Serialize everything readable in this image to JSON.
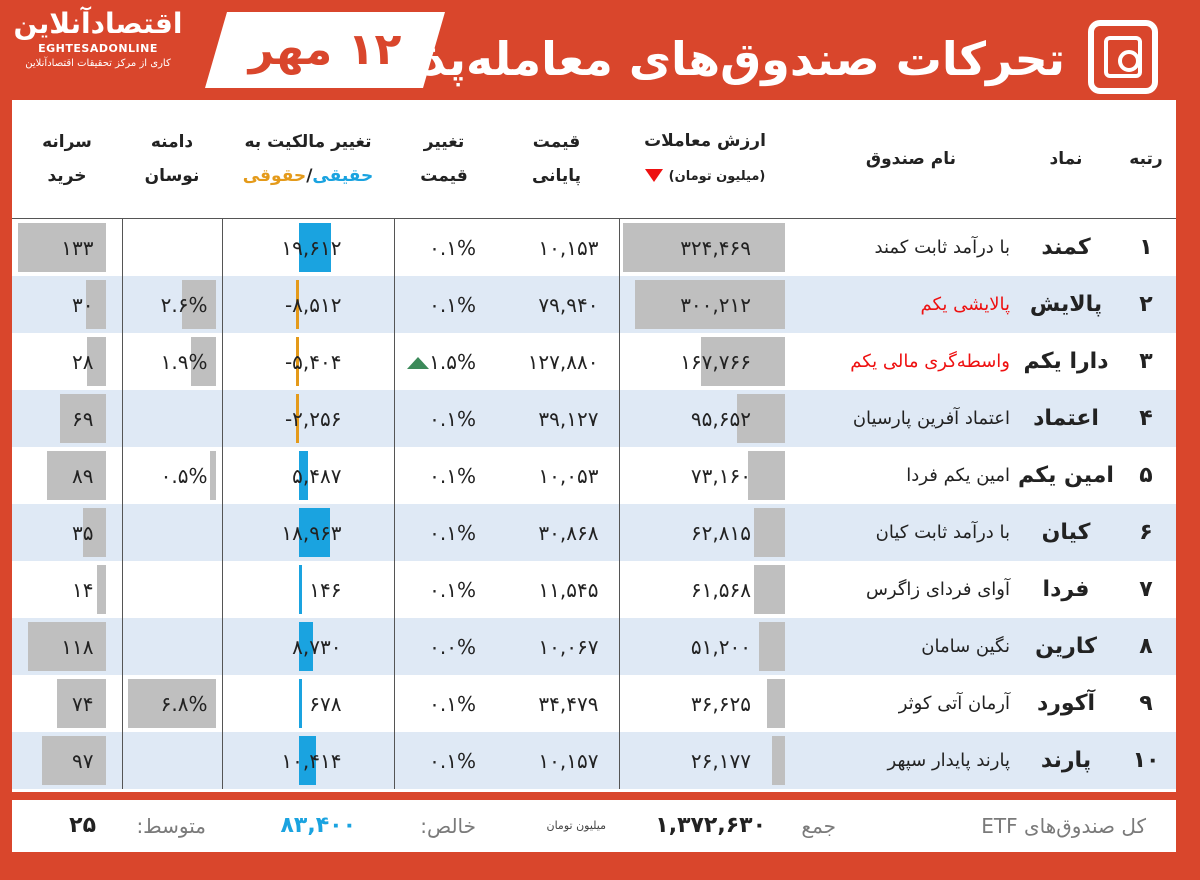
{
  "header": {
    "title": "تحرکات صندوق‌های معامله‌پذیر",
    "date": "۱۲ مهر",
    "logo_main": "اقتصادآنلاین",
    "logo_latin": "EGHTESADONLINE",
    "logo_sub": "کاری از مرکز تحقیقات اقتصادآنلاین"
  },
  "columns": {
    "rank": "رتبه",
    "symbol": "نماد",
    "name": "نام صندوق",
    "value_l1": "ارزش معاملات",
    "value_l2": "(میلیون تومان)",
    "price_l1": "قیمت",
    "price_l2": "پایانی",
    "change_l1": "تغییر",
    "change_l2": "قیمت",
    "own_l1": "تغییر مالکیت به",
    "own_real": "حقیقی",
    "own_sep": "/",
    "own_legal": "حقوقی",
    "range_l1": "دامنه",
    "range_l2": "نوسان",
    "per_l1": "سرانه",
    "per_l2": "خرید"
  },
  "rows": [
    {
      "rank": "۱",
      "symbol": "کمند",
      "name": "با درآمد ثابت کمند",
      "name_red": false,
      "value": "۳۲۴,۴۶۹",
      "value_n": 324469,
      "price": "۱۰,۱۵۳",
      "change": "۰.۱%",
      "change_up": false,
      "own": "۱۹,۶۱۲",
      "own_n": 19612,
      "range": "",
      "range_n": 0,
      "per": "۱۳۳",
      "per_n": 133
    },
    {
      "rank": "۲",
      "symbol": "پالایش",
      "name": "پالایشی یکم",
      "name_red": true,
      "value": "۳۰۰,۲۱۲",
      "value_n": 300212,
      "price": "۷۹,۹۴۰",
      "change": "۰.۱%",
      "change_up": false,
      "own": "-۸,۵۱۲",
      "own_n": -8512,
      "range": "۲.۶%",
      "range_n": 2.6,
      "per": "۳۰",
      "per_n": 30
    },
    {
      "rank": "۳",
      "symbol": "دارا یکم",
      "name": "واسطه‌گری مالی یکم",
      "name_red": true,
      "value": "۱۶۷,۷۶۶",
      "value_n": 167766,
      "price": "۱۲۷,۸۸۰",
      "change": "۱.۵%",
      "change_up": true,
      "own": "-۵,۴۰۴",
      "own_n": -5404,
      "range": "۱.۹%",
      "range_n": 1.9,
      "per": "۲۸",
      "per_n": 28
    },
    {
      "rank": "۴",
      "symbol": "اعتماد",
      "name": "اعتماد آفرین پارسیان",
      "name_red": false,
      "value": "۹۵,۶۵۲",
      "value_n": 95652,
      "price": "۳۹,۱۲۷",
      "change": "۰.۱%",
      "change_up": false,
      "own": "-۲,۲۵۶",
      "own_n": -2256,
      "range": "",
      "range_n": 0,
      "per": "۶۹",
      "per_n": 69
    },
    {
      "rank": "۵",
      "symbol": "امین یکم",
      "name": "امین یکم فردا",
      "name_red": false,
      "value": "۷۳,۱۶۰",
      "value_n": 73160,
      "price": "۱۰,۰۵۳",
      "change": "۰.۱%",
      "change_up": false,
      "own": "۵,۴۸۷",
      "own_n": 5487,
      "range": "۰.۵%",
      "range_n": 0.5,
      "per": "۸۹",
      "per_n": 89
    },
    {
      "rank": "۶",
      "symbol": "کیان",
      "name": "با درآمد ثابت کیان",
      "name_red": false,
      "value": "۶۲,۸۱۵",
      "value_n": 62815,
      "price": "۳۰,۸۶۸",
      "change": "۰.۱%",
      "change_up": false,
      "own": "۱۸,۹۶۳",
      "own_n": 18963,
      "range": "",
      "range_n": 0,
      "per": "۳۵",
      "per_n": 35
    },
    {
      "rank": "۷",
      "symbol": "فردا",
      "name": "آوای فردای زاگرس",
      "name_red": false,
      "value": "۶۱,۵۶۸",
      "value_n": 61568,
      "price": "۱۱,۵۴۵",
      "change": "۰.۱%",
      "change_up": false,
      "own": "۱۴۶",
      "own_n": 146,
      "range": "",
      "range_n": 0,
      "per": "۱۴",
      "per_n": 14
    },
    {
      "rank": "۸",
      "symbol": "کارین",
      "name": "نگین سامان",
      "name_red": false,
      "value": "۵۱,۲۰۰",
      "value_n": 51200,
      "price": "۱۰,۰۶۷",
      "change": "۰.۰%",
      "change_up": false,
      "own": "۸,۷۳۰",
      "own_n": 8730,
      "range": "",
      "range_n": 0,
      "per": "۱۱۸",
      "per_n": 118
    },
    {
      "rank": "۹",
      "symbol": "آکورد",
      "name": "آرمان آتی کوثر",
      "name_red": false,
      "value": "۳۶,۶۲۵",
      "value_n": 36625,
      "price": "۳۴,۴۷۹",
      "change": "۰.۱%",
      "change_up": false,
      "own": "۶۷۸",
      "own_n": 678,
      "range": "۶.۸%",
      "range_n": 6.8,
      "per": "۷۴",
      "per_n": 74
    },
    {
      "rank": "۱۰",
      "symbol": "پارند",
      "name": "پارند پایدار سپهر",
      "name_red": false,
      "value": "۲۶,۱۷۷",
      "value_n": 26177,
      "price": "۱۰,۱۵۷",
      "change": "۰.۱%",
      "change_up": false,
      "own": "۱۰,۴۱۴",
      "own_n": 10414,
      "range": "",
      "range_n": 0,
      "per": "۹۷",
      "per_n": 97
    }
  ],
  "footer": {
    "label_all": "کل صندوق‌های ETF",
    "label_sum": "جمع",
    "sum": "۱,۳۷۲,۶۳۰",
    "unit": "میلیون تومان",
    "label_net": "خالص:",
    "net": "۸۳,۴۰۰",
    "label_avg": "متوسط:",
    "avg": "۲۵"
  },
  "colors": {
    "brand": "#d9462c",
    "bar_gray": "#bfbfbf",
    "real_blue": "#1aa3e0",
    "legal_orange": "#e49a1a",
    "row_alt": "#dfe9f5"
  }
}
